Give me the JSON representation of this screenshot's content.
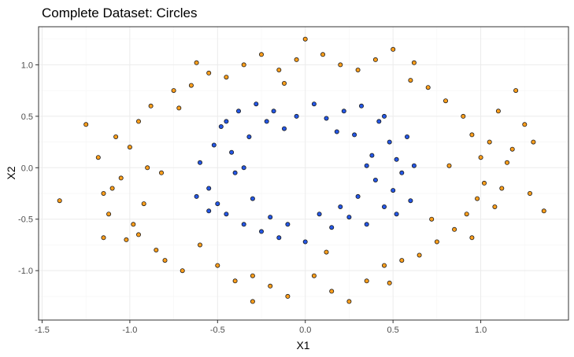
{
  "chart_data": {
    "type": "scatter",
    "title": "Complete Dataset: Circles",
    "xlabel": "X1",
    "ylabel": "X2",
    "xlim": [
      -1.52,
      1.5
    ],
    "ylim": [
      -1.48,
      1.37
    ],
    "xticks": [
      -1.5,
      -1.0,
      -0.5,
      0.0,
      0.5,
      1.0
    ],
    "xtick_labels": [
      "-1.5",
      "-1.0",
      "-0.5",
      "0.0",
      "0.5",
      "1.0"
    ],
    "yticks": [
      -1.0,
      -0.5,
      0.0,
      0.5,
      1.0
    ],
    "ytick_labels": [
      "-1.0",
      "-0.5",
      "0.0",
      "0.5",
      "1.0"
    ],
    "grid": true,
    "legend": "none",
    "series": [
      {
        "color": "#ff9f1c",
        "description_outer_ring_radius": 1.0,
        "points": [
          [
            -1.4,
            -0.32
          ],
          [
            -1.25,
            0.42
          ],
          [
            -1.18,
            0.1
          ],
          [
            -1.15,
            -0.25
          ],
          [
            -1.12,
            -0.45
          ],
          [
            -1.1,
            -0.2
          ],
          [
            -1.08,
            0.3
          ],
          [
            -1.05,
            -0.1
          ],
          [
            -1.02,
            -0.7
          ],
          [
            -1.0,
            0.2
          ],
          [
            -0.98,
            -0.55
          ],
          [
            -0.95,
            0.45
          ],
          [
            -0.92,
            -0.35
          ],
          [
            -0.9,
            0.0
          ],
          [
            -0.88,
            0.6
          ],
          [
            -0.85,
            -0.8
          ],
          [
            -0.8,
            -0.9
          ],
          [
            -0.75,
            0.75
          ],
          [
            -0.7,
            -1.0
          ],
          [
            -0.65,
            0.8
          ],
          [
            -0.6,
            -0.75
          ],
          [
            -0.55,
            0.92
          ],
          [
            -0.5,
            -0.95
          ],
          [
            -0.45,
            0.88
          ],
          [
            -0.4,
            -1.1
          ],
          [
            -0.35,
            1.0
          ],
          [
            -0.3,
            -1.05
          ],
          [
            -0.25,
            1.1
          ],
          [
            -0.2,
            -1.15
          ],
          [
            -0.15,
            0.95
          ],
          [
            -0.1,
            -1.25
          ],
          [
            -0.05,
            1.05
          ],
          [
            0.0,
            1.25
          ],
          [
            0.05,
            -1.05
          ],
          [
            0.1,
            1.1
          ],
          [
            0.15,
            -1.2
          ],
          [
            0.2,
            1.0
          ],
          [
            0.25,
            -1.3
          ],
          [
            0.3,
            0.95
          ],
          [
            0.35,
            -1.1
          ],
          [
            0.4,
            1.05
          ],
          [
            0.45,
            -0.95
          ],
          [
            0.5,
            1.15
          ],
          [
            0.55,
            -0.9
          ],
          [
            0.6,
            0.85
          ],
          [
            0.65,
            -0.85
          ],
          [
            0.7,
            0.78
          ],
          [
            0.75,
            -0.72
          ],
          [
            0.8,
            0.65
          ],
          [
            0.85,
            -0.6
          ],
          [
            0.9,
            0.5
          ],
          [
            0.92,
            -0.45
          ],
          [
            0.95,
            0.32
          ],
          [
            0.98,
            -0.3
          ],
          [
            1.0,
            0.1
          ],
          [
            1.02,
            -0.15
          ],
          [
            1.05,
            0.25
          ],
          [
            1.08,
            -0.38
          ],
          [
            1.1,
            0.55
          ],
          [
            1.12,
            -0.2
          ],
          [
            1.15,
            0.05
          ],
          [
            1.2,
            0.75
          ],
          [
            1.25,
            0.42
          ],
          [
            1.28,
            -0.25
          ],
          [
            1.3,
            0.25
          ],
          [
            1.36,
            -0.42
          ],
          [
            -0.95,
            -0.65
          ],
          [
            0.95,
            -0.68
          ],
          [
            -0.62,
            1.02
          ],
          [
            0.62,
            1.02
          ],
          [
            -0.3,
            -1.3
          ],
          [
            0.48,
            -1.12
          ],
          [
            -1.15,
            -0.68
          ],
          [
            1.18,
            0.18
          ],
          [
            -0.72,
            0.58
          ],
          [
            0.72,
            -0.5
          ],
          [
            0.82,
            0.02
          ],
          [
            -0.82,
            -0.05
          ],
          [
            -0.12,
            0.82
          ],
          [
            0.12,
            -0.82
          ]
        ]
      },
      {
        "color": "#2457e6",
        "description_inner_ring_radius": 0.5,
        "points": [
          [
            -0.6,
            0.05
          ],
          [
            -0.55,
            -0.2
          ],
          [
            -0.52,
            0.22
          ],
          [
            -0.5,
            -0.35
          ],
          [
            -0.48,
            0.4
          ],
          [
            -0.45,
            -0.45
          ],
          [
            -0.42,
            0.15
          ],
          [
            -0.4,
            -0.05
          ],
          [
            -0.38,
            0.55
          ],
          [
            -0.35,
            -0.55
          ],
          [
            -0.32,
            0.3
          ],
          [
            -0.3,
            -0.3
          ],
          [
            -0.28,
            0.62
          ],
          [
            -0.25,
            -0.62
          ],
          [
            -0.22,
            0.45
          ],
          [
            -0.2,
            -0.48
          ],
          [
            -0.18,
            0.55
          ],
          [
            -0.15,
            -0.68
          ],
          [
            -0.12,
            0.38
          ],
          [
            -0.1,
            -0.55
          ],
          [
            -0.05,
            0.5
          ],
          [
            0.0,
            -0.72
          ],
          [
            0.05,
            0.62
          ],
          [
            0.08,
            -0.45
          ],
          [
            0.12,
            0.48
          ],
          [
            0.15,
            -0.58
          ],
          [
            0.18,
            0.35
          ],
          [
            0.2,
            -0.38
          ],
          [
            0.22,
            0.55
          ],
          [
            0.25,
            -0.48
          ],
          [
            0.28,
            0.32
          ],
          [
            0.3,
            -0.28
          ],
          [
            0.32,
            0.6
          ],
          [
            0.35,
            -0.55
          ],
          [
            0.38,
            0.12
          ],
          [
            0.4,
            -0.12
          ],
          [
            0.42,
            0.45
          ],
          [
            0.45,
            -0.38
          ],
          [
            0.48,
            0.25
          ],
          [
            0.5,
            -0.22
          ],
          [
            0.52,
            0.08
          ],
          [
            0.55,
            -0.05
          ],
          [
            0.58,
            0.3
          ],
          [
            0.6,
            -0.32
          ],
          [
            0.62,
            0.02
          ],
          [
            -0.62,
            -0.28
          ],
          [
            -0.35,
            0.0
          ],
          [
            0.35,
            0.02
          ],
          [
            -0.45,
            0.45
          ],
          [
            0.45,
            0.5
          ],
          [
            -0.55,
            -0.42
          ],
          [
            0.52,
            -0.45
          ]
        ]
      }
    ]
  }
}
